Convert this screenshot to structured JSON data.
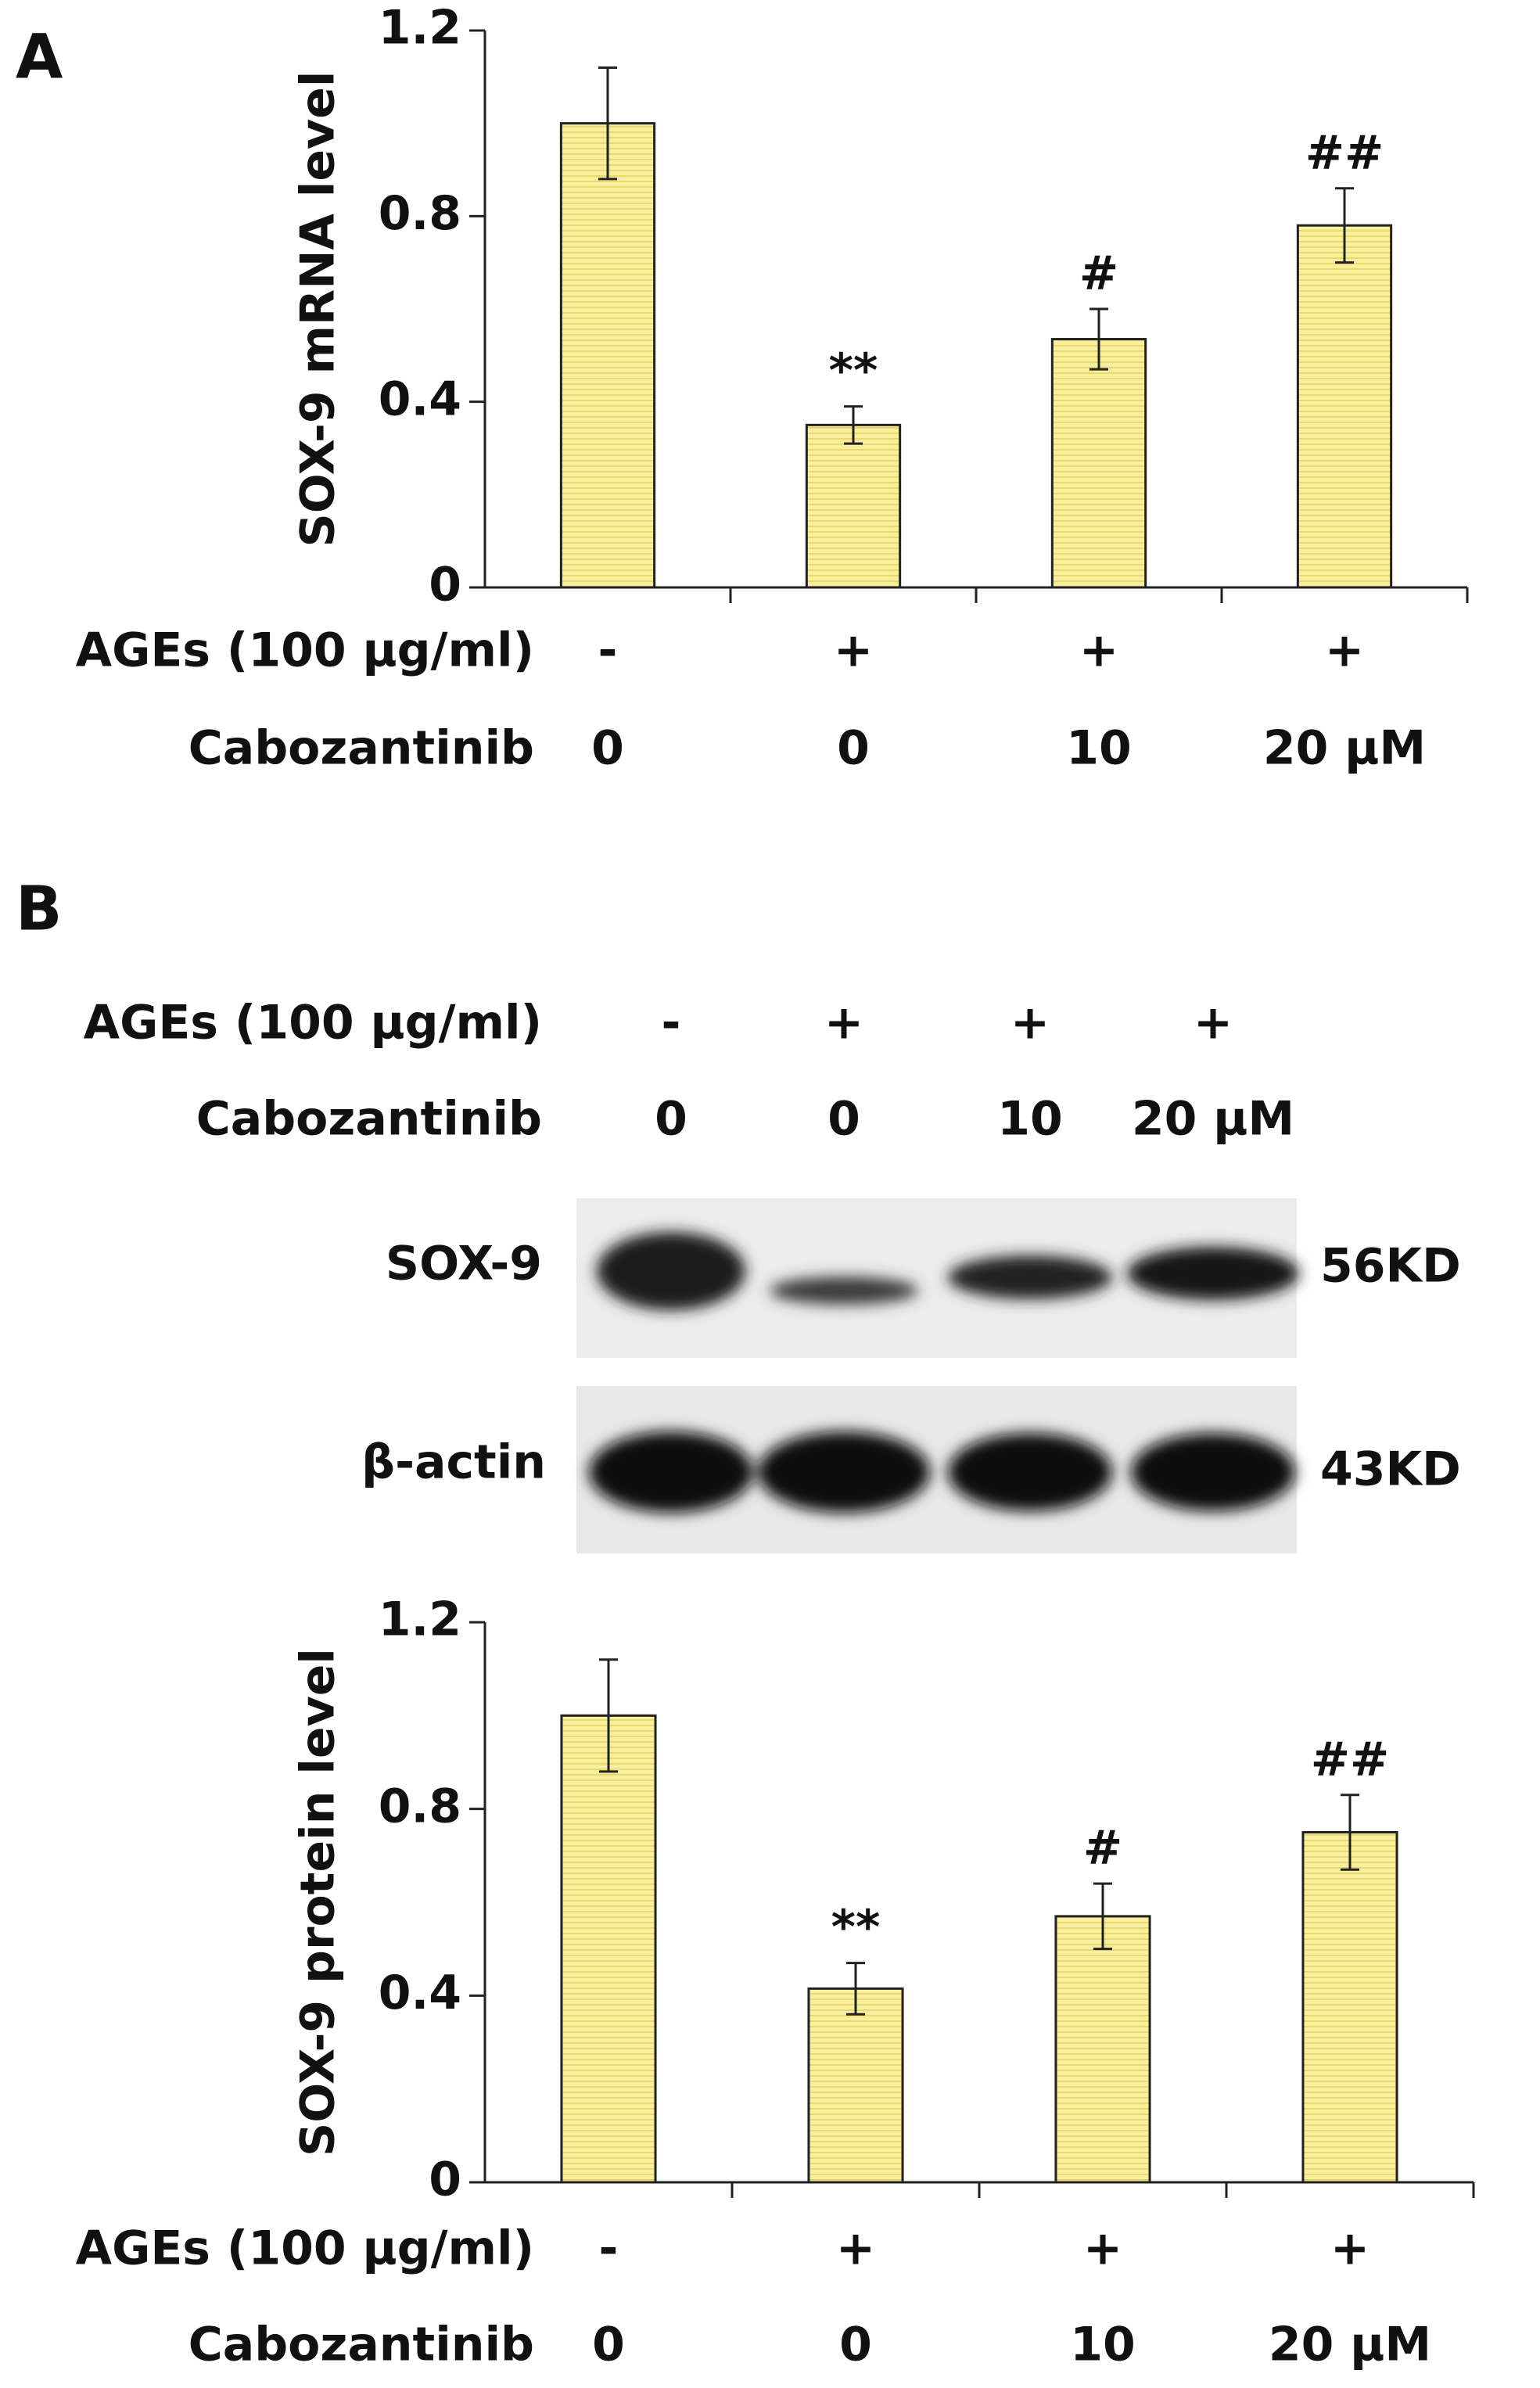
{
  "panel_labels": [
    "A",
    "B"
  ],
  "chart_data": [
    {
      "type": "bar",
      "y_label": "SOX-9 mRNA level",
      "values": [
        1.0,
        0.35,
        0.535,
        0.78
      ],
      "errors": [
        0.12,
        0.04,
        0.065,
        0.08
      ],
      "annotations": [
        null,
        "**",
        "#",
        "##"
      ],
      "color": "#f6ea8c",
      "ylim": [
        0,
        1.2
      ],
      "yticks": [
        0,
        0.4,
        0.8,
        1.2
      ],
      "conditions": [
        {
          "label": "AGEs (100 µg/ml)",
          "values": [
            "-",
            "+",
            "+",
            "+"
          ]
        },
        {
          "label": "Cabozantinib",
          "values": [
            "0",
            "0",
            "10",
            "20 µM"
          ]
        }
      ]
    },
    {
      "type": "bar",
      "y_label": "SOX-9 protein level",
      "values": [
        1.0,
        0.415,
        0.57,
        0.75
      ],
      "errors": [
        0.12,
        0.055,
        0.07,
        0.08
      ],
      "annotations": [
        null,
        "**",
        "#",
        "##"
      ],
      "color": "#f6ea8c",
      "ylim": [
        0,
        1.2
      ],
      "yticks": [
        0,
        0.4,
        0.8,
        1.2
      ],
      "conditions": [
        {
          "label": "AGEs (100 µg/ml)",
          "values": [
            "-",
            "+",
            "+",
            "+"
          ]
        },
        {
          "label": "Cabozantinib",
          "values": [
            "0",
            "0",
            "10",
            "20 µM"
          ]
        }
      ]
    }
  ],
  "blot": {
    "conditions": [
      {
        "label": "AGEs (100 µg/ml)",
        "values": [
          "-",
          "+",
          "+",
          "+"
        ]
      },
      {
        "label": "Cabozantinib",
        "values": [
          "0",
          "0",
          "10",
          "20 µM"
        ]
      }
    ],
    "rows": [
      {
        "label": "SOX-9",
        "size": "56KD"
      },
      {
        "label": "β-actin",
        "size": "43KD"
      }
    ]
  }
}
